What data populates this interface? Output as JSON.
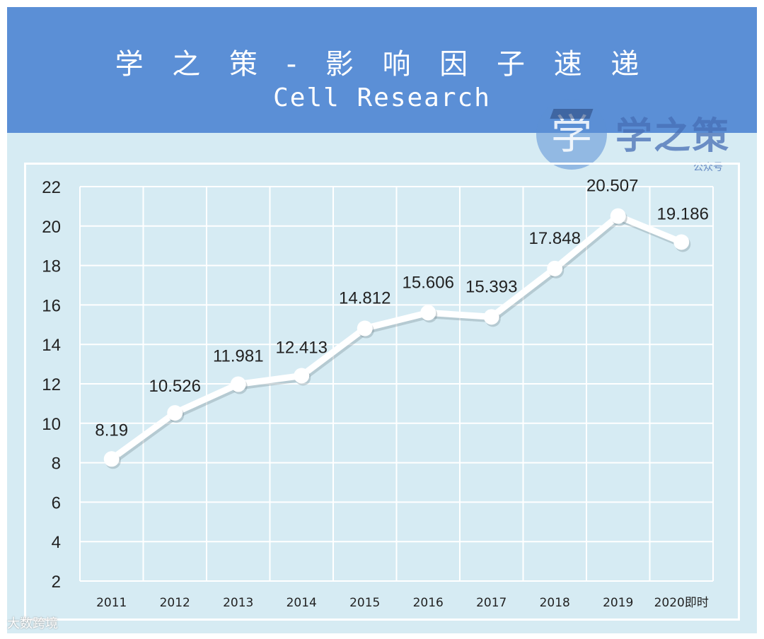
{
  "header": {
    "title": "学 之 策 - 影 响 因 子 速 递",
    "subtitle": "Cell Research"
  },
  "watermark": {
    "badge_char": "学",
    "name": "学之策",
    "sub": "公众号",
    "bottom": "大数跨境"
  },
  "colors": {
    "banner": "#5b8fd6",
    "background": "#d6ebf3",
    "line": "#ffffff",
    "grid": "#ffffff"
  },
  "chart_data": {
    "type": "line",
    "title": "Cell Research",
    "categories": [
      "2011",
      "2012",
      "2013",
      "2014",
      "2015",
      "2016",
      "2017",
      "2018",
      "2019",
      "2020即时"
    ],
    "series": [
      {
        "values": [
          8.19,
          10.526,
          11.981,
          12.413,
          14.812,
          15.606,
          15.393,
          17.848,
          20.507,
          19.186
        ],
        "labels": [
          "8.19",
          "10.526",
          "11.981",
          "12.413",
          "14.812",
          "15.606",
          "15.393",
          "17.848",
          "20.507",
          "19.186"
        ]
      }
    ],
    "ylim": [
      2,
      22
    ],
    "yticks": [
      "22",
      "20",
      "18",
      "16",
      "14",
      "12",
      "10",
      "8",
      "6",
      "4",
      "2"
    ],
    "grid": true
  }
}
